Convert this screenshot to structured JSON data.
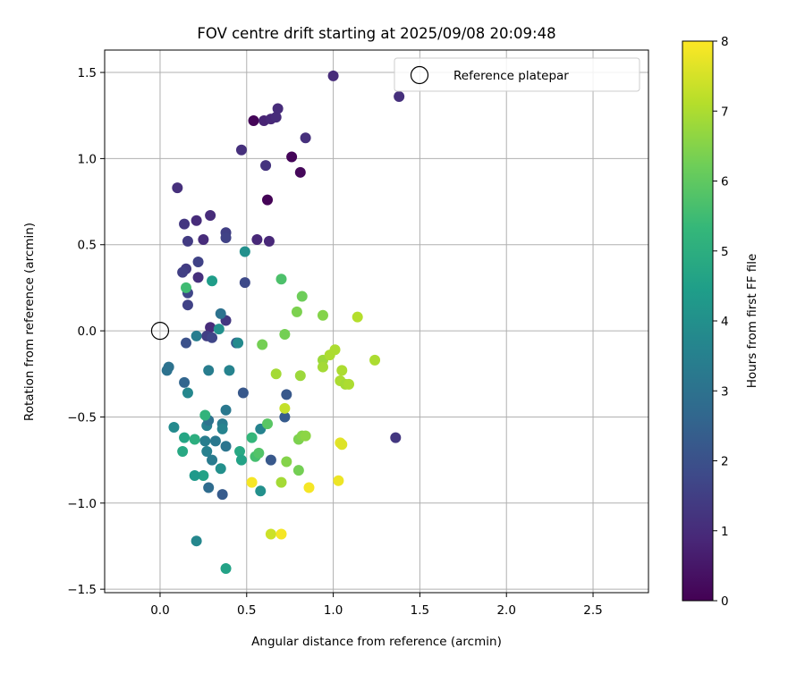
{
  "chart_data": {
    "type": "scatter",
    "title": "FOV centre drift starting at 2025/09/08 20:09:48",
    "xlabel": "Angular distance from reference (arcmin)",
    "ylabel": "Rotation from reference (arcmin)",
    "xlim": [
      -0.32,
      2.82
    ],
    "ylim": [
      -1.52,
      1.63
    ],
    "xticks": [
      0.0,
      0.5,
      1.0,
      1.5,
      2.0,
      2.5
    ],
    "xtick_labels": [
      "0.0",
      "0.5",
      "1.0",
      "1.5",
      "2.0",
      "2.5"
    ],
    "yticks": [
      -1.5,
      -1.0,
      -0.5,
      0.0,
      0.5,
      1.0,
      1.5
    ],
    "ytick_labels": [
      "−1.5",
      "−1.0",
      "−0.5",
      "0.0",
      "0.5",
      "1.0",
      "1.5"
    ],
    "grid": true,
    "legend": {
      "placement": "top-right",
      "entries": [
        "Reference platepar"
      ]
    },
    "reference_point": {
      "x": 0.0,
      "y": 0.0,
      "label": "Reference platepar"
    },
    "colorbar": {
      "label": "Hours from first FF file",
      "range": [
        0,
        8
      ],
      "ticks": [
        0,
        1,
        2,
        3,
        4,
        5,
        6,
        7,
        8
      ],
      "colormap": "viridis",
      "colors": [
        "#440154",
        "#482878",
        "#3e4989",
        "#31688e",
        "#26828e",
        "#1f9e89",
        "#35b779",
        "#6ece58",
        "#b5de2b",
        "#fde725"
      ]
    },
    "points": [
      {
        "x": 0.54,
        "y": 1.22,
        "h": 0.1
      },
      {
        "x": 0.62,
        "y": 0.76,
        "h": 0.05
      },
      {
        "x": 0.76,
        "y": 1.01,
        "h": 0.1
      },
      {
        "x": 0.81,
        "y": 0.92,
        "h": 0.15
      },
      {
        "x": 0.6,
        "y": 1.22,
        "h": 0.8
      },
      {
        "x": 0.64,
        "y": 1.23,
        "h": 0.9
      },
      {
        "x": 0.67,
        "y": 1.24,
        "h": 1.0
      },
      {
        "x": 0.68,
        "y": 1.29,
        "h": 1.0
      },
      {
        "x": 1.0,
        "y": 1.48,
        "h": 1.0
      },
      {
        "x": 1.38,
        "y": 1.36,
        "h": 1.1
      },
      {
        "x": 0.84,
        "y": 1.12,
        "h": 1.1
      },
      {
        "x": 0.47,
        "y": 1.05,
        "h": 1.1
      },
      {
        "x": 0.61,
        "y": 0.96,
        "h": 1.2
      },
      {
        "x": 0.1,
        "y": 0.83,
        "h": 1.1
      },
      {
        "x": 0.29,
        "y": 0.67,
        "h": 1.0
      },
      {
        "x": 0.21,
        "y": 0.64,
        "h": 1.0
      },
      {
        "x": 0.14,
        "y": 0.62,
        "h": 1.3
      },
      {
        "x": 0.38,
        "y": 0.57,
        "h": 1.5
      },
      {
        "x": 0.38,
        "y": 0.54,
        "h": 1.6
      },
      {
        "x": 0.56,
        "y": 0.53,
        "h": 0.9
      },
      {
        "x": 0.63,
        "y": 0.52,
        "h": 0.9
      },
      {
        "x": 0.25,
        "y": 0.53,
        "h": 1.0
      },
      {
        "x": 0.16,
        "y": 0.52,
        "h": 1.4
      },
      {
        "x": 0.22,
        "y": 0.4,
        "h": 1.6
      },
      {
        "x": 0.15,
        "y": 0.36,
        "h": 1.4
      },
      {
        "x": 0.13,
        "y": 0.34,
        "h": 1.5
      },
      {
        "x": 0.22,
        "y": 0.31,
        "h": 1.1
      },
      {
        "x": 0.49,
        "y": 0.28,
        "h": 1.8
      },
      {
        "x": 0.16,
        "y": 0.22,
        "h": 1.7
      },
      {
        "x": 0.16,
        "y": 0.15,
        "h": 1.6
      },
      {
        "x": 0.38,
        "y": 0.06,
        "h": 1.3
      },
      {
        "x": 0.29,
        "y": 0.02,
        "h": 1.0
      },
      {
        "x": 0.27,
        "y": -0.03,
        "h": 1.5
      },
      {
        "x": 0.3,
        "y": -0.04,
        "h": 1.7
      },
      {
        "x": 0.15,
        "y": -0.07,
        "h": 2.0
      },
      {
        "x": 0.44,
        "y": -0.07,
        "h": 2.3
      },
      {
        "x": 0.73,
        "y": -0.37,
        "h": 2.2
      },
      {
        "x": 0.48,
        "y": -0.36,
        "h": 2.2
      },
      {
        "x": 0.72,
        "y": -0.5,
        "h": 2.3
      },
      {
        "x": 1.36,
        "y": -0.62,
        "h": 1.3
      },
      {
        "x": 0.64,
        "y": -0.75,
        "h": 2.2
      },
      {
        "x": 0.36,
        "y": -0.95,
        "h": 2.3
      },
      {
        "x": 0.14,
        "y": -0.3,
        "h": 2.6
      },
      {
        "x": 0.05,
        "y": -0.21,
        "h": 3.0
      },
      {
        "x": 0.04,
        "y": -0.23,
        "h": 3.0
      },
      {
        "x": 0.28,
        "y": -0.23,
        "h": 3.4
      },
      {
        "x": 0.4,
        "y": -0.23,
        "h": 3.6
      },
      {
        "x": 0.16,
        "y": -0.36,
        "h": 3.7
      },
      {
        "x": 0.21,
        "y": -0.03,
        "h": 3.4
      },
      {
        "x": 0.35,
        "y": 0.1,
        "h": 3.0
      },
      {
        "x": 0.34,
        "y": 0.01,
        "h": 4.0
      },
      {
        "x": 0.45,
        "y": -0.07,
        "h": 3.8
      },
      {
        "x": 0.49,
        "y": 0.46,
        "h": 4.0
      },
      {
        "x": 0.38,
        "y": -0.46,
        "h": 3.2
      },
      {
        "x": 0.08,
        "y": -0.56,
        "h": 3.8
      },
      {
        "x": 0.27,
        "y": -0.55,
        "h": 3.5
      },
      {
        "x": 0.28,
        "y": -0.52,
        "h": 3.0
      },
      {
        "x": 0.36,
        "y": -0.54,
        "h": 3.3
      },
      {
        "x": 0.36,
        "y": -0.57,
        "h": 3.6
      },
      {
        "x": 0.26,
        "y": -0.64,
        "h": 3.4
      },
      {
        "x": 0.32,
        "y": -0.64,
        "h": 3.2
      },
      {
        "x": 0.38,
        "y": -0.67,
        "h": 3.1
      },
      {
        "x": 0.27,
        "y": -0.7,
        "h": 3.5
      },
      {
        "x": 0.3,
        "y": -0.75,
        "h": 3.3
      },
      {
        "x": 0.35,
        "y": -0.8,
        "h": 4.0
      },
      {
        "x": 0.25,
        "y": -0.84,
        "h": 4.6
      },
      {
        "x": 0.2,
        "y": -0.84,
        "h": 4.3
      },
      {
        "x": 0.28,
        "y": -0.91,
        "h": 2.8
      },
      {
        "x": 0.58,
        "y": -0.57,
        "h": 3.6
      },
      {
        "x": 0.58,
        "y": -0.93,
        "h": 4.0
      },
      {
        "x": 0.21,
        "y": -1.22,
        "h": 3.7
      },
      {
        "x": 0.38,
        "y": -1.38,
        "h": 4.6
      },
      {
        "x": 0.15,
        "y": 0.25,
        "h": 5.5
      },
      {
        "x": 0.3,
        "y": 0.29,
        "h": 4.4
      },
      {
        "x": 0.14,
        "y": -0.62,
        "h": 4.7
      },
      {
        "x": 0.13,
        "y": -0.7,
        "h": 4.8
      },
      {
        "x": 0.2,
        "y": -0.63,
        "h": 5.0
      },
      {
        "x": 0.26,
        "y": -0.49,
        "h": 5.2
      },
      {
        "x": 0.46,
        "y": -0.7,
        "h": 4.8
      },
      {
        "x": 0.47,
        "y": -0.75,
        "h": 4.6
      },
      {
        "x": 0.53,
        "y": -0.62,
        "h": 5.3
      },
      {
        "x": 0.55,
        "y": -0.73,
        "h": 5.6
      },
      {
        "x": 0.57,
        "y": -0.71,
        "h": 5.8
      },
      {
        "x": 0.62,
        "y": -0.54,
        "h": 5.9
      },
      {
        "x": 0.7,
        "y": 0.3,
        "h": 5.7
      },
      {
        "x": 0.82,
        "y": 0.2,
        "h": 6.2
      },
      {
        "x": 0.59,
        "y": -0.08,
        "h": 6.3
      },
      {
        "x": 0.72,
        "y": -0.02,
        "h": 6.3
      },
      {
        "x": 0.79,
        "y": 0.11,
        "h": 6.4
      },
      {
        "x": 0.94,
        "y": 0.09,
        "h": 6.5
      },
      {
        "x": 0.8,
        "y": -0.63,
        "h": 6.4
      },
      {
        "x": 0.82,
        "y": -0.61,
        "h": 6.5
      },
      {
        "x": 0.84,
        "y": -0.61,
        "h": 6.6
      },
      {
        "x": 0.73,
        "y": -0.76,
        "h": 6.5
      },
      {
        "x": 0.8,
        "y": -0.81,
        "h": 6.3
      },
      {
        "x": 0.7,
        "y": -0.88,
        "h": 6.9
      },
      {
        "x": 0.67,
        "y": -0.25,
        "h": 6.9
      },
      {
        "x": 0.81,
        "y": -0.26,
        "h": 6.8
      },
      {
        "x": 0.94,
        "y": -0.17,
        "h": 6.8
      },
      {
        "x": 0.94,
        "y": -0.21,
        "h": 6.9
      },
      {
        "x": 0.98,
        "y": -0.14,
        "h": 7.0
      },
      {
        "x": 1.01,
        "y": -0.11,
        "h": 7.0
      },
      {
        "x": 1.04,
        "y": -0.29,
        "h": 7.0
      },
      {
        "x": 1.05,
        "y": -0.23,
        "h": 7.0
      },
      {
        "x": 1.07,
        "y": -0.31,
        "h": 6.9
      },
      {
        "x": 1.09,
        "y": -0.31,
        "h": 7.0
      },
      {
        "x": 1.14,
        "y": 0.08,
        "h": 7.1
      },
      {
        "x": 1.24,
        "y": -0.17,
        "h": 7.0
      },
      {
        "x": 0.72,
        "y": -0.45,
        "h": 7.3
      },
      {
        "x": 0.64,
        "y": -1.18,
        "h": 7.4
      },
      {
        "x": 1.04,
        "y": -0.65,
        "h": 7.7
      },
      {
        "x": 1.05,
        "y": -0.66,
        "h": 7.6
      },
      {
        "x": 1.03,
        "y": -0.87,
        "h": 7.8
      },
      {
        "x": 0.53,
        "y": -0.88,
        "h": 7.9
      },
      {
        "x": 0.86,
        "y": -0.91,
        "h": 7.9
      },
      {
        "x": 0.7,
        "y": -1.18,
        "h": 7.9
      }
    ]
  }
}
